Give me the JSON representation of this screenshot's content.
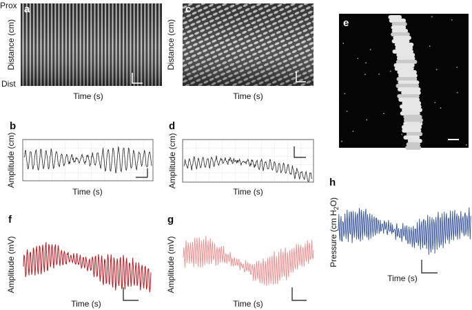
{
  "panels": [
    {
      "label": "a",
      "top": "Prox",
      "bottom": "Dist",
      "ylabel": "Distance (cm)",
      "xlabel": "Time (s)"
    },
    {
      "label": "b",
      "ylabel": "Amplitude (cm)",
      "xlabel": "Time (s)"
    },
    {
      "label": "c",
      "ylabel": "Distance (cm)",
      "xlabel": "Time (s)"
    },
    {
      "label": "d",
      "ylabel": "Amplitude (cm)",
      "xlabel": "Time (s)"
    },
    {
      "label": "e"
    },
    {
      "label": "f",
      "ylabel": "Amplitude (mV)",
      "xlabel": "Time (s)"
    },
    {
      "label": "g",
      "ylabel": "Amplitude (mV)",
      "xlabel": "Time (s)"
    },
    {
      "label": "h",
      "ylabel_parts": [
        "Pressure (cm H",
        "2",
        "O)"
      ],
      "xlabel": "Time (s)"
    }
  ]
}
